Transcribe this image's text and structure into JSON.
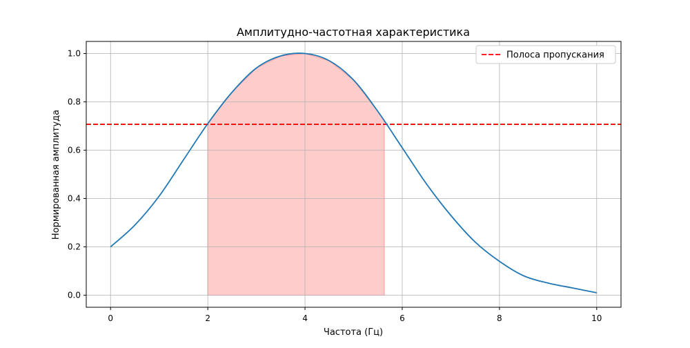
{
  "chart_data": {
    "type": "line",
    "title": "Амплитудно-частотная характеристика",
    "xlabel": "Частота (Гц)",
    "ylabel": "Нормированная амплитуда",
    "xlim": [
      -0.5,
      10.5
    ],
    "ylim": [
      -0.05,
      1.05
    ],
    "xticks": [
      0,
      2,
      4,
      6,
      8,
      10
    ],
    "yticks": [
      0.0,
      0.2,
      0.4,
      0.6,
      0.8,
      1.0
    ],
    "xtick_labels": [
      "0",
      "2",
      "4",
      "6",
      "8",
      "10"
    ],
    "ytick_labels": [
      "0.0",
      "0.2",
      "0.4",
      "0.6",
      "0.8",
      "1.0"
    ],
    "grid": true,
    "legend": {
      "placement": "top-right",
      "entries": [
        {
          "label": "Полоса пропускания",
          "style": "dashed",
          "color": "#ff0000"
        }
      ]
    },
    "series": [
      {
        "style": "solid",
        "color": "#1f77b4",
        "x": [
          0,
          0.5,
          1,
          1.5,
          2,
          2.5,
          3,
          3.5,
          4,
          4.5,
          5,
          5.5,
          6,
          6.5,
          7,
          7.5,
          8,
          8.5,
          9,
          9.5,
          10
        ],
        "y": [
          0.2,
          0.29,
          0.41,
          0.56,
          0.71,
          0.84,
          0.94,
          0.99,
          1.0,
          0.97,
          0.89,
          0.76,
          0.61,
          0.46,
          0.33,
          0.22,
          0.14,
          0.08,
          0.05,
          0.03,
          0.01
        ]
      }
    ],
    "hlines": [
      {
        "y": 0.707,
        "style": "dashed",
        "color": "#ff0000",
        "label": "Полоса пропускания"
      }
    ],
    "shaded_region": {
      "x_start": 2.0,
      "x_end": 5.63,
      "color": "#ffcccc"
    }
  }
}
